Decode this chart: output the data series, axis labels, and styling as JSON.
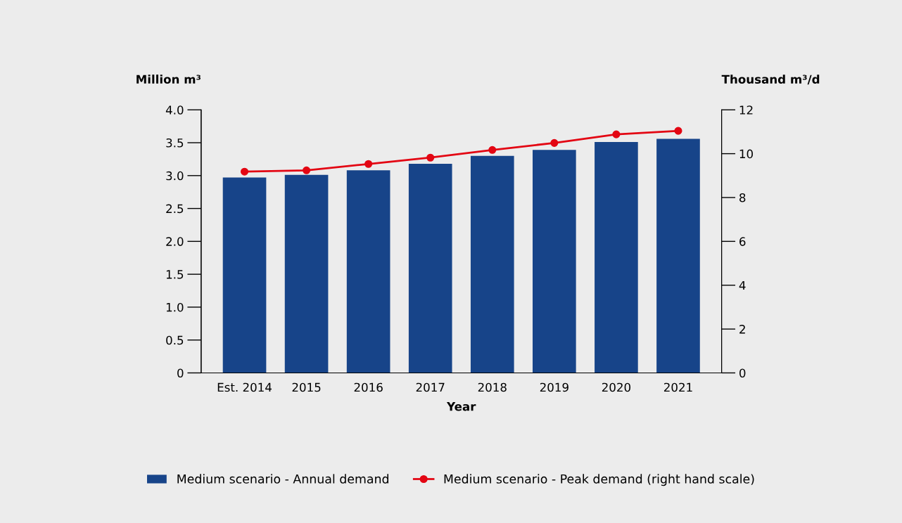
{
  "chart_data": {
    "type": "bar",
    "xlabel": "Year",
    "ylabel": "Million m³",
    "y2label": "Thousand m³/d",
    "categories": [
      "Est. 2014",
      "2015",
      "2016",
      "2017",
      "2018",
      "2019",
      "2020",
      "2021"
    ],
    "series": [
      {
        "name": "Medium scenario - Annual demand",
        "color": "#174489",
        "values": [
          2.97,
          3.01,
          3.08,
          3.18,
          3.3,
          3.39,
          3.51,
          3.56
        ]
      },
      {
        "name": "Medium scenario - Peak demand (right hand scale)",
        "type": "line",
        "axis": "y2",
        "color": "#e30613",
        "marker": "circle",
        "values": [
          9.18,
          9.24,
          9.53,
          9.82,
          10.17,
          10.49,
          10.88,
          11.04
        ]
      }
    ],
    "ylim": [
      0,
      4
    ],
    "yticks": [
      0,
      0.5,
      {
        "value": 1,
        "label": "1.0"
      },
      1.5,
      {
        "value": 2,
        "label": "2.0"
      },
      2.5,
      {
        "value": 3,
        "label": "3.0"
      },
      3.5,
      {
        "value": 4,
        "label": "4.0"
      }
    ],
    "y2lim": [
      0,
      12
    ],
    "y2ticks": [
      0,
      2,
      4,
      6,
      8,
      10,
      12
    ],
    "grid": false,
    "legend": "bottom"
  }
}
